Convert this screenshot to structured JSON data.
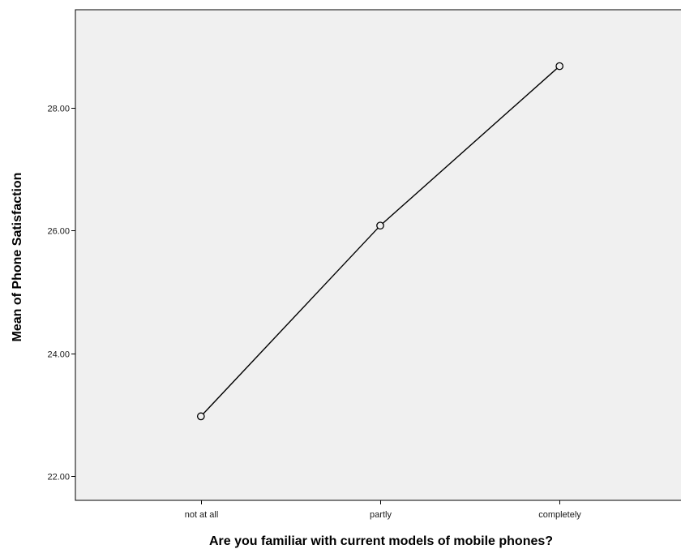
{
  "chart_data": {
    "type": "line",
    "title": "",
    "xlabel": "Are you familiar with current models of mobile phones?",
    "ylabel": "Mean of Phone Satisfaction",
    "categories": [
      "not at all",
      "partly",
      "completely"
    ],
    "series": [
      {
        "values": [
          22.97,
          26.08,
          28.68
        ]
      }
    ],
    "ylim": [
      21.6,
      29.6
    ],
    "yticks": [
      22.0,
      24.0,
      26.0,
      28.0
    ],
    "ytick_labels": [
      "22.00",
      "24.00",
      "26.00",
      "28.00"
    ],
    "grid": false,
    "marker": "open-circle",
    "colors": {
      "plot_background": "#f0f0f0",
      "line": "#000000",
      "page_background": "#ffffff"
    }
  }
}
